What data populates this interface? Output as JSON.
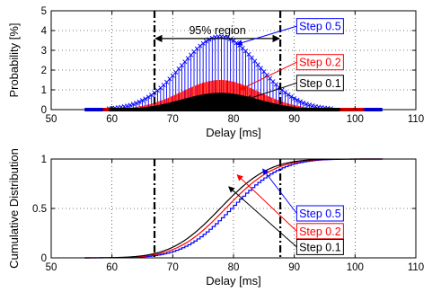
{
  "chart_data": [
    {
      "type": "bar",
      "name": "probability",
      "xlabel": "Delay [ms]",
      "ylabel": "Probability [%]",
      "xlim": [
        50,
        110
      ],
      "ylim": [
        0,
        5
      ],
      "xticks": [
        50,
        60,
        70,
        80,
        90,
        100,
        110
      ],
      "yticks": [
        0,
        1,
        2,
        3,
        4,
        5
      ],
      "grid": true,
      "distribution": {
        "mean": 77.8,
        "sigma": 6.3,
        "support": [
          55.5,
          104.5
        ]
      },
      "series": [
        {
          "name": "Step 0.5",
          "color": "#0000ff",
          "step": 0.5,
          "peak": 3.7,
          "support": [
            55.5,
            104.5
          ]
        },
        {
          "name": "Step 0.2",
          "color": "#ff0000",
          "step": 0.2,
          "peak": 1.5,
          "support": [
            58.5,
            101.5
          ]
        },
        {
          "name": "Step 0.1",
          "color": "#000000",
          "step": 0.1,
          "peak": 0.85,
          "support": [
            59.5,
            97.5
          ]
        }
      ],
      "region": {
        "label": "95% region",
        "x0": 67,
        "x1": 87.7,
        "y": 4.05
      },
      "callouts": [
        {
          "series": "Step 0.5",
          "label": "Step 0.5",
          "color": "#0000ff",
          "text_at": [
            90.4,
            4.22
          ],
          "arrow_to": [
            80.5,
            3.3
          ]
        },
        {
          "series": "Step 0.2",
          "label": "Step 0.2",
          "color": "#ff0000",
          "text_at": [
            90.4,
            2.4
          ],
          "arrow_to": [
            81.0,
            1.0
          ]
        },
        {
          "series": "Step 0.1",
          "label": "Step 0.1",
          "color": "#000000",
          "text_at": [
            90.4,
            1.35
          ],
          "arrow_to": [
            82.0,
            0.5
          ]
        }
      ]
    },
    {
      "type": "line",
      "name": "cdf",
      "xlabel": "Delay [ms]",
      "ylabel": "Cumulative Distribution",
      "xlim": [
        50,
        110
      ],
      "ylim": [
        0,
        1
      ],
      "xticks": [
        50,
        60,
        70,
        80,
        90,
        100,
        110
      ],
      "yticks": [
        0,
        0.5,
        1
      ],
      "ytick_labels": [
        "0",
        "0.5",
        "1"
      ],
      "grid": true,
      "series": [
        {
          "name": "Step 0.5",
          "color": "#0000ff",
          "shift": 1.7,
          "stepped": true
        },
        {
          "name": "Step 0.2",
          "color": "#ff0000",
          "shift": 0.9,
          "stepped": false
        },
        {
          "name": "Step 0.1",
          "color": "#000000",
          "shift": 0.0,
          "stepped": false
        }
      ],
      "vlines": [
        67,
        87.7
      ],
      "callouts": [
        {
          "series": "Step 0.5",
          "label": "Step 0.5",
          "color": "#0000ff",
          "text_at": [
            90.4,
            0.45
          ],
          "arrow_to": [
            84.8,
            0.9
          ]
        },
        {
          "series": "Step 0.2",
          "label": "Step 0.2",
          "color": "#ff0000",
          "text_at": [
            90.4,
            0.27
          ],
          "arrow_to": [
            80.6,
            0.84
          ]
        },
        {
          "series": "Step 0.1",
          "label": "Step 0.1",
          "color": "#000000",
          "text_at": [
            90.4,
            0.11
          ],
          "arrow_to": [
            79.2,
            0.72
          ]
        }
      ]
    }
  ]
}
